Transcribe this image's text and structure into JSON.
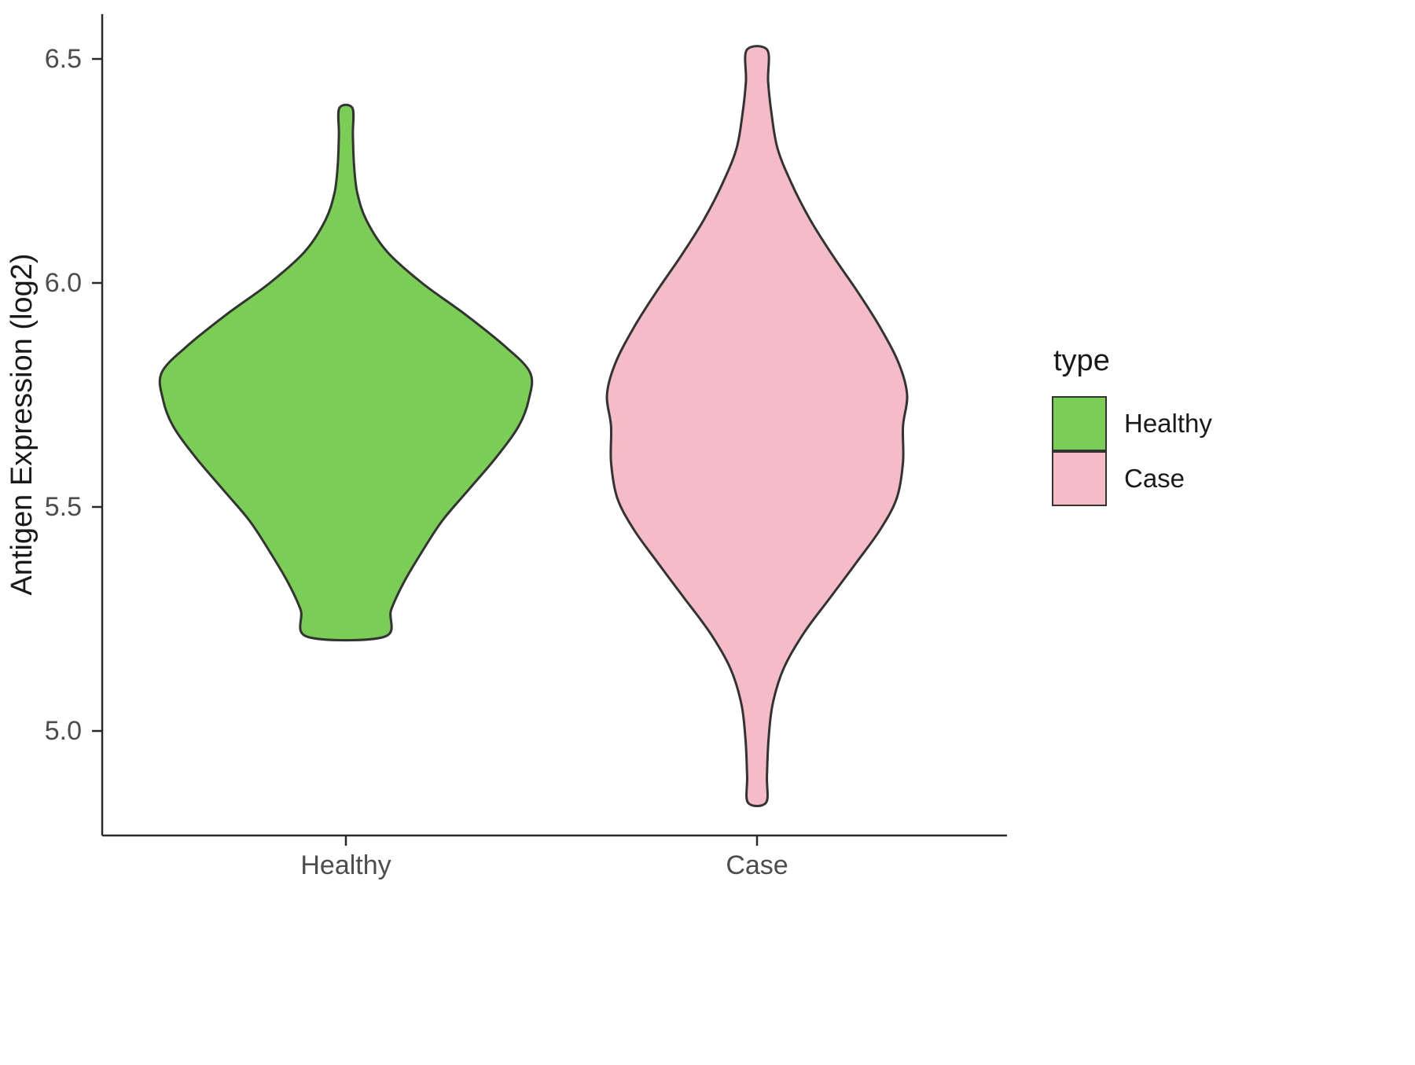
{
  "chart_data": {
    "type": "violin",
    "title": "",
    "xlabel": "",
    "ylabel": "Antigen Expression (log2)",
    "categories": [
      "Healthy",
      "Case"
    ],
    "y_ticks": [
      6.5,
      6.0,
      5.5,
      5.0
    ],
    "y_tick_labels": [
      "6.5",
      "6.0",
      "5.5",
      "5.0"
    ],
    "ylim": [
      4.75,
      6.6
    ],
    "grid": false,
    "outline_color": "#333333",
    "legend": {
      "title": "type",
      "position": "right",
      "entries": [
        {
          "label": "Healthy",
          "color": "#7bce55"
        },
        {
          "label": "Case",
          "color": "#f5bcc8"
        }
      ]
    },
    "series": [
      {
        "name": "Healthy",
        "color": "#7bce55",
        "min": 5.21,
        "max": 6.39,
        "peak_density_at": 5.79,
        "profile": [
          [
            6.39,
            0.016
          ],
          [
            6.33,
            0.017
          ],
          [
            6.26,
            0.02
          ],
          [
            6.2,
            0.028
          ],
          [
            6.14,
            0.05
          ],
          [
            6.07,
            0.1
          ],
          [
            6.0,
            0.185
          ],
          [
            5.93,
            0.29
          ],
          [
            5.86,
            0.385
          ],
          [
            5.8,
            0.448
          ],
          [
            5.74,
            0.445
          ],
          [
            5.68,
            0.42
          ],
          [
            5.61,
            0.365
          ],
          [
            5.54,
            0.3
          ],
          [
            5.47,
            0.235
          ],
          [
            5.4,
            0.185
          ],
          [
            5.33,
            0.14
          ],
          [
            5.27,
            0.11
          ],
          [
            5.21,
            0.093
          ]
        ]
      },
      {
        "name": "Case",
        "color": "#f5bcc8",
        "min": 4.84,
        "max": 6.52,
        "peak_density_at": 5.75,
        "profile": [
          [
            6.52,
            0.025
          ],
          [
            6.45,
            0.027
          ],
          [
            6.38,
            0.035
          ],
          [
            6.3,
            0.05
          ],
          [
            6.22,
            0.085
          ],
          [
            6.14,
            0.13
          ],
          [
            6.06,
            0.185
          ],
          [
            5.98,
            0.245
          ],
          [
            5.9,
            0.3
          ],
          [
            5.82,
            0.345
          ],
          [
            5.75,
            0.365
          ],
          [
            5.68,
            0.355
          ],
          [
            5.6,
            0.355
          ],
          [
            5.52,
            0.34
          ],
          [
            5.45,
            0.3
          ],
          [
            5.38,
            0.245
          ],
          [
            5.3,
            0.18
          ],
          [
            5.22,
            0.115
          ],
          [
            5.14,
            0.065
          ],
          [
            5.06,
            0.038
          ],
          [
            4.98,
            0.028
          ],
          [
            4.9,
            0.024
          ],
          [
            4.84,
            0.022
          ]
        ]
      }
    ]
  }
}
